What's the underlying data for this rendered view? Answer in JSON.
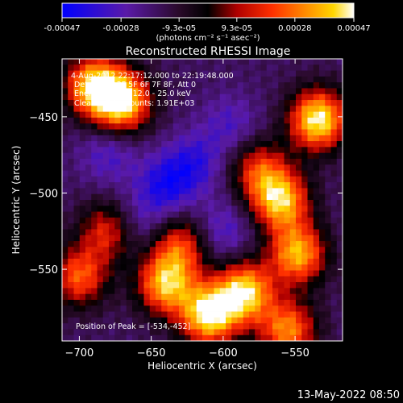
{
  "colorbar": {
    "tick_labels": [
      "-0.00047",
      "-0.00028",
      "-9.3e-05",
      "9.3e-05",
      "0.00028",
      "0.00047"
    ],
    "tick_values": [
      -0.00047,
      -0.00028,
      -9.3e-05,
      9.3e-05,
      0.00028,
      0.00047
    ],
    "range": [
      -0.00047,
      0.00047
    ],
    "unit_text": "(photons cm⁻² s⁻¹ asec⁻²)",
    "colors": [
      "#0000ff",
      "#5a1aa8",
      "#2a0a2a",
      "#000000",
      "#b00000",
      "#ff3000",
      "#ff9000",
      "#ffd600",
      "#ffffff"
    ]
  },
  "chart_data": {
    "type": "heatmap",
    "title": "Reconstructed RHESSI Image",
    "xlabel": "Heliocentric X (arcsec)",
    "ylabel": "Heliocentric Y (arcsec)",
    "xlim": [
      -712,
      -517
    ],
    "ylim": [
      -597,
      -412
    ],
    "xticks": [
      -700,
      -650,
      -600,
      -550
    ],
    "xtick_labels": [
      "−700",
      "−650",
      "−600",
      "−550"
    ],
    "yticks": [
      -450,
      -500,
      -550
    ],
    "ytick_labels": [
      "−450",
      "−500",
      "−550"
    ],
    "annotations": [
      "4-Aug-2012 22:17:12.000 to 22:19:48.000",
      "Detectors: 3F 5F 6F 7F 8F, Att 0",
      "Energy Range: 12.0 - 25.0 keV",
      "Clean    Total counts: 1.91E+03"
    ],
    "peak_label": "Position of Peak = [-534,-452]",
    "peak": [
      -534,
      -452
    ],
    "hotspots": [
      {
        "x": -670,
        "y": -440,
        "value": 0.00044
      },
      {
        "x": -690,
        "y": -430,
        "value": 0.0004
      },
      {
        "x": -534,
        "y": -452,
        "value": 0.00047
      },
      {
        "x": -560,
        "y": -505,
        "value": 0.00038
      },
      {
        "x": -548,
        "y": -540,
        "value": 0.00036
      },
      {
        "x": -585,
        "y": -565,
        "value": 0.00042
      },
      {
        "x": -610,
        "y": -580,
        "value": 0.00046
      },
      {
        "x": -640,
        "y": -560,
        "value": 0.00036
      },
      {
        "x": -700,
        "y": -555,
        "value": 0.00024
      },
      {
        "x": -680,
        "y": -525,
        "value": 0.00018
      },
      {
        "x": -555,
        "y": -590,
        "value": 0.0003
      },
      {
        "x": -630,
        "y": -535,
        "value": 0.0002
      },
      {
        "x": -575,
        "y": -485,
        "value": 0.00018
      }
    ],
    "coldspots": [
      {
        "x": -640,
        "y": -495,
        "value": -0.0004
      },
      {
        "x": -620,
        "y": -480,
        "value": -0.00032
      },
      {
        "x": -600,
        "y": -525,
        "value": -0.00028
      },
      {
        "x": -680,
        "y": -475,
        "value": -0.00026
      },
      {
        "x": -660,
        "y": -520,
        "value": -0.00024
      },
      {
        "x": -595,
        "y": -455,
        "value": -0.00024
      }
    ]
  },
  "footer": {
    "timestamp": "13-May-2022 08:50"
  }
}
